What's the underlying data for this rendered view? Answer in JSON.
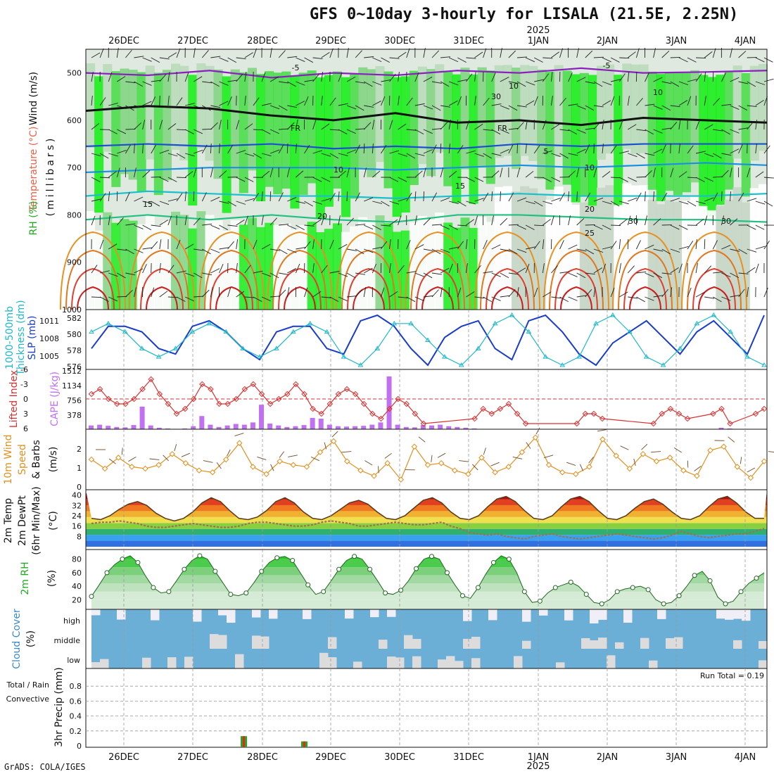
{
  "title": "GFS 0~10day 3-hourly for LISALA (21.5E, 2.25N)",
  "footer": "GrADS: COLA/IGES",
  "colors": {
    "temperature": "#e8624a",
    "wind": "#111111",
    "rh_green": "#22cc22",
    "slp": "#1a3ccc",
    "thickness": "#20b8c8",
    "lifted": "#d83030",
    "cape": "#c070f0",
    "wind10": "#e09020",
    "cloud": "#6baed6",
    "precip_green": "#22aa22",
    "precip_red": "#ee2222"
  },
  "date_labels": [
    "26DEC",
    "27DEC",
    "28DEC",
    "29DEC",
    "30DEC",
    "31DEC",
    "1JAN",
    "2JAN",
    "3JAN",
    "4JAN"
  ],
  "year_label": "2025",
  "panels": {
    "upper": {
      "ylabels": [
        {
          "t": "Wind (m/s)",
          "c": "#111111"
        },
        {
          "t": "Temperature (°C)",
          "c": "#e8624a"
        },
        {
          "t": "RH (%)",
          "c": "#22aa22"
        }
      ],
      "ylabel2": "(millibars)",
      "ticks": [
        "500",
        "600",
        "700",
        "800",
        "900",
        "1000"
      ],
      "contour_labels": [
        "-5",
        "-5",
        "FR",
        "FR",
        "5",
        "10",
        "10",
        "15",
        "15",
        "20",
        "20",
        "25",
        "30",
        "30",
        "10",
        "10",
        "30"
      ]
    },
    "slp": {
      "ylabels": [
        {
          "t": "1000-500mb",
          "c": "#20b8c8"
        },
        {
          "t": "Thickness (dm)",
          "c": "#20b8c8"
        },
        {
          "t": "SLP (mb)",
          "c": "#1a3ccc"
        }
      ],
      "ticks_left": [
        "582",
        "580",
        "578",
        "576"
      ],
      "ticks_right": [
        "1011",
        "1008",
        "1005"
      ]
    },
    "cape": {
      "ylabels": [
        {
          "t": "Lifted Index",
          "c": "#d83030"
        },
        {
          "t": "CAPE (J/kg)",
          "c": "#c070f0"
        }
      ],
      "ticks_left": [
        "-6",
        "-3",
        "0",
        "3",
        "6"
      ],
      "ticks_right": [
        "1512",
        "1134",
        "756",
        "378"
      ]
    },
    "wind10": {
      "ylabels": [
        {
          "t": "10m Wind",
          "c": "#e09020"
        },
        {
          "t": "Speed",
          "c": "#e09020"
        },
        {
          "t": "& Barbs",
          "c": "#111111"
        }
      ],
      "unit": "(m/s)",
      "ticks": [
        "2",
        "1",
        "0"
      ]
    },
    "temp2m": {
      "ylabels": [
        {
          "t": "2m Temp",
          "c": "#111111"
        },
        {
          "t": "2m DewPt",
          "c": "#111111"
        },
        {
          "t": "(6hr Min/Max)",
          "c": "#111111"
        }
      ],
      "unit": "(°C)",
      "ticks": [
        "40",
        "32",
        "24",
        "16",
        "8"
      ]
    },
    "rh2m": {
      "ylabel": "2m RH",
      "unit": "(%)",
      "ticks": [
        "80",
        "60",
        "40",
        "20"
      ]
    },
    "cloud": {
      "ylabel": "Cloud Cover",
      "unit": "(%)",
      "levels": [
        "high",
        "middle",
        "low"
      ]
    },
    "precip": {
      "ylabels": [
        {
          "t": "Total / Rain",
          "c": "#22aa22"
        },
        {
          "t": "Convective",
          "c": "#ee2222"
        }
      ],
      "unit": "3hr Precip (mm)",
      "ticks": [
        "0.8",
        "0.6",
        "0.4",
        "0.2",
        "0"
      ],
      "run_total": "Run Total = 0.19"
    }
  },
  "chart_data": [
    {
      "type": "area",
      "panel": "upper",
      "xlabel": "",
      "ylabel": "(millibars)",
      "ylim": [
        1000,
        450
      ],
      "yticks": [
        500,
        600,
        700,
        800,
        900,
        1000
      ],
      "series": [
        {
          "name": "-5",
          "level_mb": [
            500,
            505,
            495,
            510,
            500,
            505,
            495,
            500,
            490,
            500,
            498,
            495
          ]
        },
        {
          "name": "FR",
          "level_mb": [
            580,
            570,
            575,
            590,
            600,
            585,
            605,
            600,
            610,
            595,
            600,
            605
          ]
        },
        {
          "name": "5",
          "level_mb": [
            655,
            650,
            655,
            650,
            660,
            655,
            660,
            650,
            655,
            650,
            650,
            650
          ]
        },
        {
          "name": "10",
          "level_mb": [
            710,
            705,
            700,
            700,
            700,
            705,
            700,
            695,
            700,
            695,
            690,
            695
          ]
        },
        {
          "name": "15",
          "level_mb": [
            760,
            750,
            755,
            760,
            760,
            765,
            760,
            755,
            760,
            760,
            760,
            755
          ]
        },
        {
          "name": "20",
          "level_mb": [
            810,
            800,
            810,
            800,
            810,
            815,
            800,
            800,
            805,
            810,
            810,
            815
          ]
        }
      ]
    },
    {
      "type": "line",
      "panel": "slp",
      "series": [
        {
          "name": "SLP",
          "values": [
            1006,
            1010,
            1010,
            1009,
            1006,
            1005,
            1010,
            1011,
            1009,
            1006,
            1004,
            1009,
            1010,
            1010,
            1006,
            1005,
            1011,
            1012,
            1010,
            1006,
            1003,
            1008,
            1010,
            1011,
            1006,
            1004,
            1011,
            1012,
            1009,
            1005,
            1003,
            1007,
            1009,
            1011,
            1008,
            1005,
            1009,
            1011,
            1008,
            1005,
            1012
          ]
        },
        {
          "name": "1000-500mb Thickness",
          "values": [
            580,
            581,
            580,
            578,
            577,
            578,
            580,
            581,
            580,
            578,
            577,
            578,
            580,
            581,
            580,
            577,
            576,
            578,
            581,
            581,
            579,
            577,
            576,
            578,
            581,
            582,
            580,
            577,
            576,
            577,
            581,
            582,
            580,
            577,
            576,
            578,
            581,
            582,
            580,
            577,
            576
          ]
        }
      ]
    },
    {
      "type": "bar",
      "panel": "cape",
      "series": [
        {
          "name": "CAPE",
          "values": [
            100,
            120,
            90,
            60,
            50,
            110,
            600,
            100,
            40,
            20,
            10,
            20,
            80,
            350,
            120,
            60,
            100,
            140,
            120,
            180,
            650,
            150,
            100,
            60,
            80,
            110,
            300,
            280,
            120,
            80,
            70,
            80,
            90,
            120,
            180,
            1400,
            120,
            60,
            50,
            110,
            100,
            120,
            80,
            60,
            40,
            20,
            0,
            0,
            0,
            0,
            0,
            0,
            0,
            0,
            0,
            0,
            0,
            0,
            0,
            0,
            0,
            0,
            0,
            0,
            0,
            0,
            0,
            0,
            0,
            0,
            0,
            0,
            0,
            0,
            40,
            20,
            0,
            0,
            0,
            0
          ]
        },
        {
          "name": "Lifted Index",
          "values": [
            -1,
            -2,
            0,
            1,
            1,
            0,
            -2,
            -4,
            -1,
            1,
            3,
            2,
            0,
            -3,
            -2,
            1,
            1,
            0,
            -2,
            -3,
            -1,
            1,
            0,
            -1,
            -3,
            -1,
            2,
            3,
            1,
            -1,
            -2,
            -1,
            1,
            3,
            4,
            2,
            0,
            1,
            3,
            5,
            6,
            6,
            7,
            7,
            6,
            4,
            2,
            3,
            2,
            1,
            3,
            5,
            6,
            7,
            7,
            8,
            6,
            5,
            3,
            3,
            4,
            6,
            7,
            8,
            8,
            7,
            5,
            3,
            2,
            3,
            4,
            6,
            7,
            3,
            2,
            5,
            7,
            6,
            3,
            2
          ]
        }
      ]
    },
    {
      "type": "line",
      "panel": "wind10",
      "series": [
        {
          "name": "10m Wind Speed",
          "values": [
            1.5,
            1,
            1.6,
            1.1,
            1,
            1.2,
            1.8,
            1.3,
            0.9,
            0.8,
            1.5,
            2.4,
            1.1,
            0.7,
            1.4,
            1.2,
            1.1,
            1.9,
            2.5,
            1.4,
            0.9,
            0.6,
            1.3,
            0.4,
            2.2,
            1.2,
            1.3,
            0.9,
            0.7,
            1.6,
            0.8,
            1.1,
            1.9,
            2.7,
            1.2,
            0.8,
            0.7,
            1.1,
            2.6,
            1.7,
            1,
            1.8,
            1.4,
            1.6,
            0.9,
            0.6,
            2,
            2.2,
            1.1,
            0.5,
            1.4
          ]
        }
      ]
    },
    {
      "type": "area",
      "panel": "temp2m",
      "series": [
        {
          "name": "2m Temp",
          "values": [
            22,
            21,
            24,
            29,
            33,
            35,
            32,
            26,
            22,
            20,
            22,
            27,
            34,
            38,
            35,
            28,
            22,
            21,
            23,
            28,
            35,
            38,
            34,
            27,
            22,
            21,
            24,
            29,
            34,
            36,
            33,
            27,
            22,
            21,
            24,
            30,
            36,
            38,
            34,
            27,
            22,
            21,
            24,
            31,
            37,
            39,
            35,
            28,
            22,
            21,
            24,
            31,
            37,
            39,
            35,
            28,
            22,
            21,
            24,
            30,
            35,
            37,
            33,
            27,
            22,
            21,
            24,
            31,
            37,
            39,
            34,
            27,
            22,
            22
          ]
        },
        {
          "name": "2m DewPt",
          "values": [
            18,
            19,
            19,
            20,
            19,
            18,
            16,
            15,
            15,
            16,
            17,
            18,
            17,
            16,
            15,
            15,
            16,
            18,
            19,
            19,
            18,
            17,
            16,
            16,
            17,
            19,
            20,
            19,
            18,
            16,
            16,
            17,
            18,
            19,
            18,
            17,
            17,
            18,
            19,
            16,
            14,
            11,
            10,
            9,
            10,
            8,
            7,
            6,
            8,
            9,
            10,
            8,
            7,
            6,
            7,
            8,
            9,
            10,
            9,
            8,
            7,
            6,
            7,
            9,
            12,
            10,
            8,
            7,
            8,
            9,
            10,
            10,
            12,
            14
          ]
        }
      ]
    },
    {
      "type": "area",
      "panel": "rh2m",
      "series": [
        {
          "name": "2m RH",
          "values": [
            25,
            42,
            60,
            72,
            80,
            85,
            75,
            55,
            38,
            30,
            32,
            48,
            65,
            78,
            85,
            80,
            62,
            45,
            28,
            26,
            30,
            45,
            62,
            75,
            82,
            84,
            78,
            60,
            42,
            28,
            32,
            48,
            65,
            78,
            84,
            80,
            65,
            48,
            30,
            28,
            34,
            48,
            66,
            80,
            84,
            80,
            60,
            42,
            26,
            22,
            38,
            58,
            75,
            85,
            80,
            60,
            32,
            16,
            18,
            30,
            38,
            42,
            46,
            40,
            28,
            16,
            14,
            20,
            32,
            36,
            38,
            40,
            35,
            20,
            14,
            16,
            26,
            40,
            56,
            62,
            48,
            24,
            14,
            18,
            32,
            44,
            52,
            60
          ]
        }
      ]
    },
    {
      "type": "bar",
      "panel": "precip",
      "categories": [
        "28DEC",
        "29DEC"
      ],
      "series": [
        {
          "name": "Total / Rain",
          "values": [
            0.13,
            0.06
          ]
        },
        {
          "name": "Convective",
          "values": [
            0.13,
            0.06
          ]
        }
      ],
      "ylim": [
        0,
        1.0
      ],
      "run_total": 0.19
    }
  ]
}
